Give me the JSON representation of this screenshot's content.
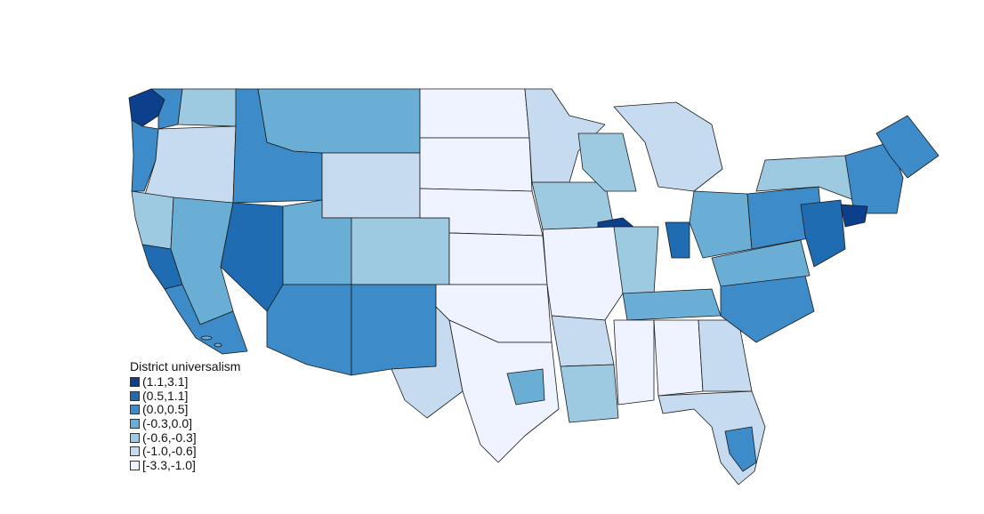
{
  "map": {
    "legend": {
      "title": "District universalism",
      "items": [
        {
          "label": "(1.1,3.1]",
          "color": "#0c3f8c"
        },
        {
          "label": "(0.5,1.1]",
          "color": "#1f6cb3"
        },
        {
          "label": "(0.0,0.5]",
          "color": "#3d8bc9"
        },
        {
          "label": "(-0.3,0.0]",
          "color": "#6aaed6"
        },
        {
          "label": "(-0.6,-0.3]",
          "color": "#9ecae1"
        },
        {
          "label": "(-1.0,-0.6]",
          "color": "#c6dbef"
        },
        {
          "label": "[-3.3,-1.0]",
          "color": "#eff3ff"
        }
      ]
    }
  }
}
